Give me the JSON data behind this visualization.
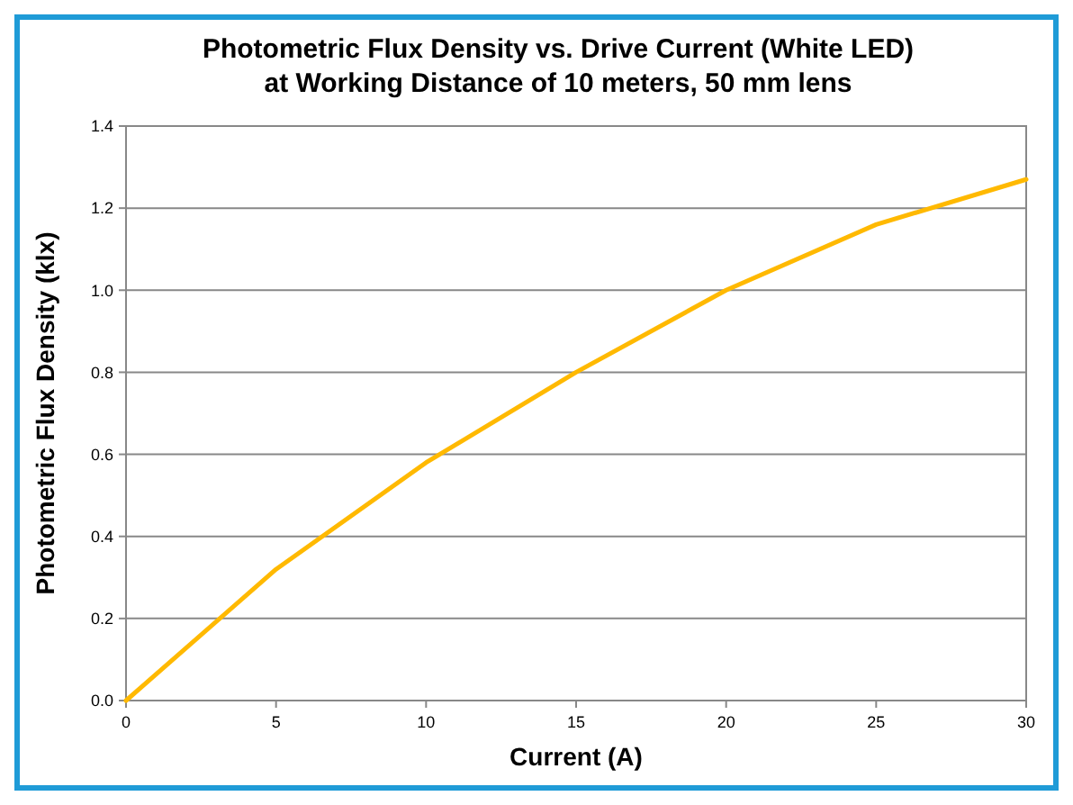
{
  "chart_data": {
    "type": "line",
    "title": "Photometric Flux Density vs. Drive Current (White LED)\nat Working Distance of 10 meters, 50 mm lens",
    "xlabel": "Current (A)",
    "ylabel": "Photometric Flux Density (klx)",
    "x": [
      0,
      5,
      10,
      15,
      20,
      25,
      30
    ],
    "series": [
      {
        "color": "#ffb900",
        "values": [
          0,
          0.32,
          0.58,
          0.8,
          1.0,
          1.16,
          1.27
        ]
      }
    ],
    "xlim": [
      0,
      30
    ],
    "xticks": [
      0,
      5,
      10,
      15,
      20,
      25,
      30
    ],
    "ylim": [
      0,
      1.4
    ],
    "yticks": [
      {
        "value": 0,
        "label": "0.0"
      },
      {
        "value": 0.2,
        "label": "0.2"
      },
      {
        "value": 0.4,
        "label": "0.4"
      },
      {
        "value": 0.6,
        "label": "0.6"
      },
      {
        "value": 0.8,
        "label": "0.8"
      },
      {
        "value": 1,
        "label": "1.0"
      },
      {
        "value": 1.2,
        "label": "1.2"
      },
      {
        "value": 1.4,
        "label": "1.4"
      }
    ],
    "grid": "y",
    "marker": "none",
    "line_style": "solid"
  }
}
